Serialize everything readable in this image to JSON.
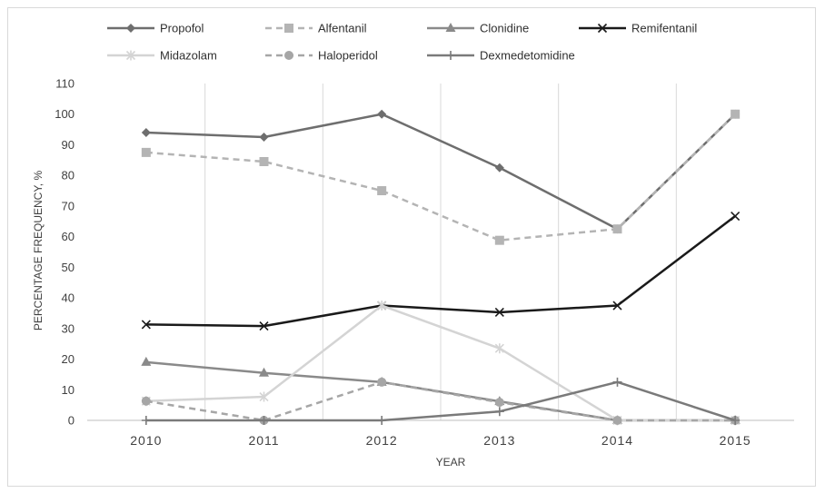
{
  "chart_data": {
    "type": "line",
    "title": "",
    "xlabel": "YEAR",
    "ylabel": "PERCENTAGE FREQUENCY, %",
    "ylim": [
      0,
      110
    ],
    "yticks": [
      0,
      10,
      20,
      30,
      40,
      50,
      60,
      70,
      80,
      90,
      100,
      110
    ],
    "categories": [
      "2010",
      "2011",
      "2012",
      "2013",
      "2014",
      "2015"
    ],
    "grid": "vertical",
    "legend_position": "top",
    "series": [
      {
        "name": "Propofol",
        "values": [
          94,
          92.5,
          100,
          82.5,
          62.5,
          100
        ],
        "color": "#6e6e6e",
        "dash": "solid",
        "marker": "diamond"
      },
      {
        "name": "Alfentanil",
        "values": [
          87.5,
          84.5,
          75,
          58.8,
          62.5,
          100
        ],
        "color": "#b4b4b4",
        "dash": "dashed",
        "marker": "square"
      },
      {
        "name": "Clonidine",
        "values": [
          19,
          15.5,
          12.5,
          6.2,
          0,
          0
        ],
        "color": "#8a8a8a",
        "dash": "solid",
        "marker": "triangle"
      },
      {
        "name": "Remifentanil",
        "values": [
          31.3,
          30.8,
          37.5,
          35.3,
          37.5,
          66.7
        ],
        "color": "#1a1a1a",
        "dash": "solid",
        "marker": "x"
      },
      {
        "name": "Midazolam",
        "values": [
          6.3,
          7.7,
          37.5,
          23.5,
          0,
          0
        ],
        "color": "#d4d4d4",
        "dash": "solid",
        "marker": "star"
      },
      {
        "name": "Haloperidol",
        "values": [
          6.3,
          0,
          12.5,
          5.9,
          0,
          0
        ],
        "color": "#a6a6a6",
        "dash": "dashed",
        "marker": "circle"
      },
      {
        "name": "Dexmedetomidine",
        "values": [
          0,
          0,
          0,
          2.9,
          12.5,
          0
        ],
        "color": "#7a7a7a",
        "dash": "solid",
        "marker": "plus"
      }
    ]
  }
}
